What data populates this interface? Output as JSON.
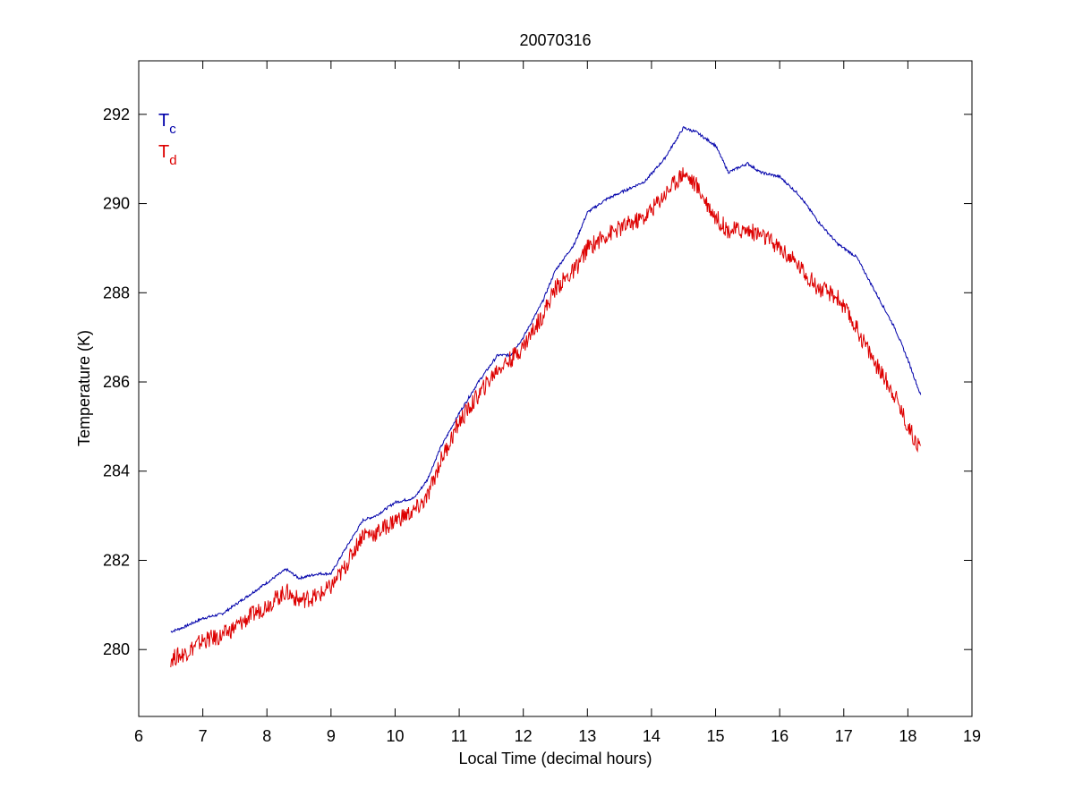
{
  "chart_data": {
    "type": "line",
    "title": "20070316",
    "xlabel": "Local Time (decimal hours)",
    "ylabel": "Temperature (K)",
    "xlim": [
      6,
      19
    ],
    "ylim": [
      278.5,
      293.2
    ],
    "xticks": [
      6,
      7,
      8,
      9,
      10,
      11,
      12,
      13,
      14,
      15,
      16,
      17,
      18,
      19
    ],
    "yticks": [
      280,
      282,
      284,
      286,
      288,
      290,
      292
    ],
    "grid": false,
    "legend_position": "top-left",
    "series": [
      {
        "name": "T_c",
        "label_main": "T",
        "label_sub": "c",
        "color": "#0000aa",
        "noise": 0.03,
        "x": [
          6.5,
          6.7,
          7.0,
          7.3,
          7.6,
          8.0,
          8.3,
          8.5,
          8.8,
          9.0,
          9.2,
          9.5,
          9.7,
          10.0,
          10.3,
          10.5,
          10.7,
          11.0,
          11.3,
          11.6,
          11.8,
          12.0,
          12.3,
          12.5,
          12.8,
          13.0,
          13.3,
          13.6,
          13.9,
          14.2,
          14.5,
          14.7,
          15.0,
          15.2,
          15.5,
          15.7,
          16.0,
          16.3,
          16.6,
          16.9,
          17.2,
          17.5,
          17.8,
          18.0,
          18.2
        ],
        "y": [
          280.4,
          280.5,
          280.7,
          280.8,
          281.1,
          281.5,
          281.8,
          281.6,
          281.7,
          281.7,
          282.2,
          282.9,
          283.0,
          283.3,
          283.4,
          283.8,
          284.5,
          285.3,
          286.0,
          286.6,
          286.6,
          287.0,
          287.8,
          288.5,
          289.1,
          289.8,
          290.1,
          290.3,
          290.5,
          291.0,
          291.7,
          291.6,
          291.3,
          290.7,
          290.9,
          290.7,
          290.6,
          290.2,
          289.6,
          289.1,
          288.8,
          288.0,
          287.2,
          286.5,
          285.7
        ]
      },
      {
        "name": "T_d",
        "label_main": "T",
        "label_sub": "d",
        "color": "#dd0000",
        "noise": 0.2,
        "x": [
          6.5,
          6.7,
          7.0,
          7.3,
          7.6,
          8.0,
          8.3,
          8.5,
          8.8,
          9.0,
          9.2,
          9.5,
          9.7,
          10.0,
          10.3,
          10.5,
          10.7,
          11.0,
          11.3,
          11.6,
          11.8,
          12.0,
          12.3,
          12.5,
          12.8,
          13.0,
          13.3,
          13.6,
          13.9,
          14.2,
          14.5,
          14.7,
          15.0,
          15.2,
          15.5,
          15.7,
          16.0,
          16.3,
          16.6,
          16.9,
          17.2,
          17.5,
          17.8,
          18.0,
          18.2
        ],
        "y": [
          279.8,
          279.9,
          280.2,
          280.3,
          280.6,
          281.0,
          281.3,
          281.1,
          281.2,
          281.4,
          281.8,
          282.6,
          282.6,
          282.9,
          283.1,
          283.4,
          284.2,
          285.1,
          285.7,
          286.3,
          286.5,
          286.8,
          287.5,
          288.1,
          288.5,
          289.0,
          289.3,
          289.5,
          289.7,
          290.2,
          290.7,
          290.4,
          289.7,
          289.4,
          289.4,
          289.3,
          289.0,
          288.6,
          288.1,
          287.9,
          287.2,
          286.4,
          285.7,
          285.0,
          284.5
        ]
      }
    ]
  }
}
